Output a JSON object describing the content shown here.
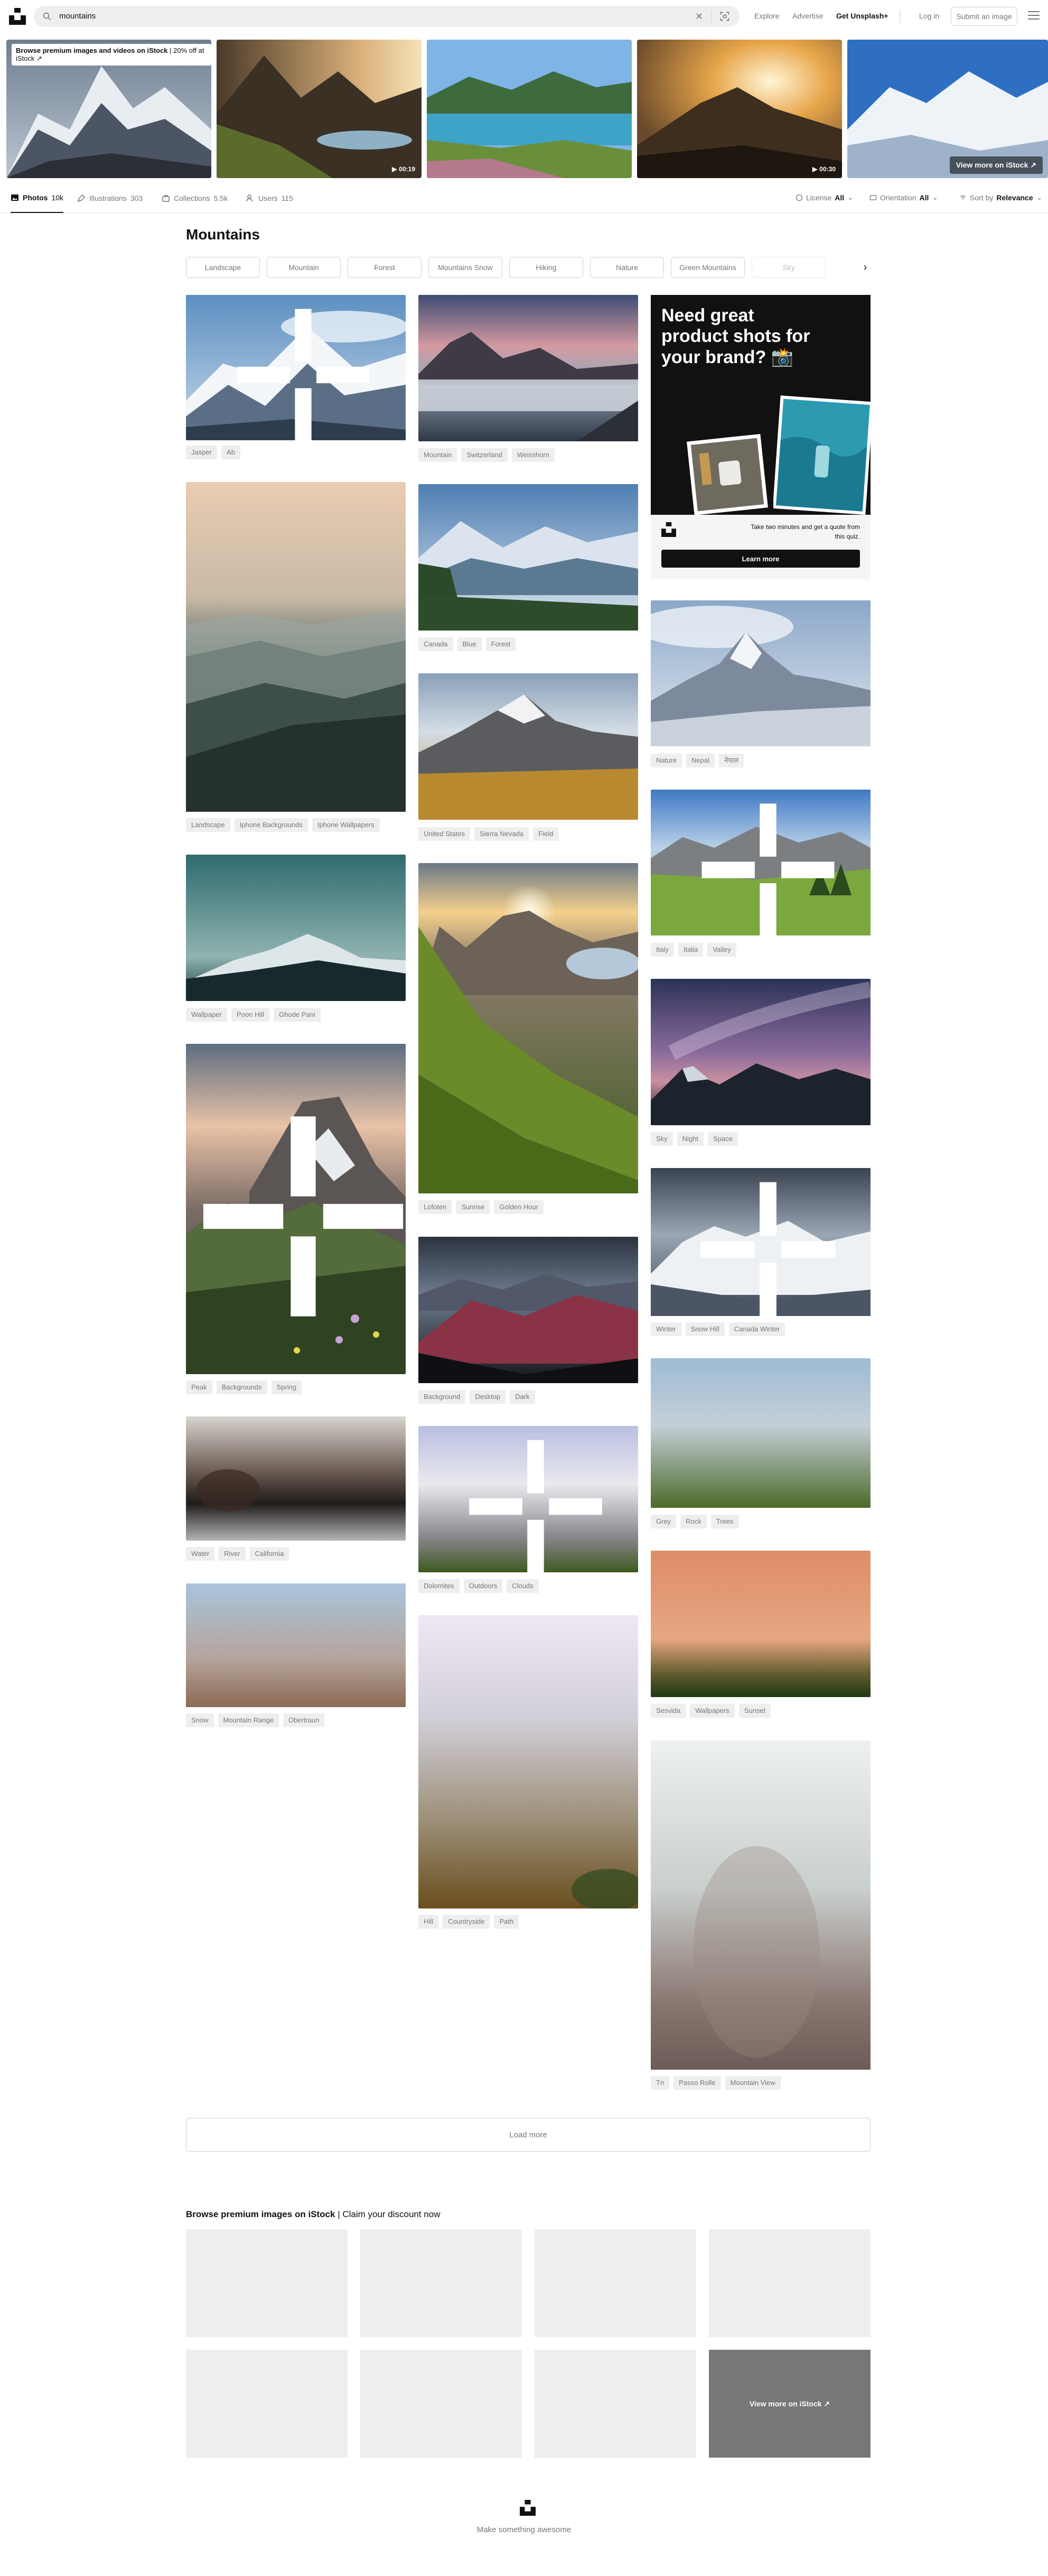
{
  "header": {
    "search_value": "mountains",
    "nav": {
      "explore": "Explore",
      "advertise": "Advertise",
      "get_plus": "Get Unsplash+"
    },
    "login": "Log in",
    "submit": "Submit an image"
  },
  "istock_strip": {
    "banner_bold": "Browse premium images and videos on iStock",
    "banner_rest": " | 20% off at iStock ↗",
    "durations": [
      "00:19",
      "00:30"
    ],
    "view_more": "View more on iStock ↗"
  },
  "tabs": [
    {
      "label": "Photos",
      "count": "10k"
    },
    {
      "label": "Illustrations",
      "count": "303"
    },
    {
      "label": "Collections",
      "count": "5.5k"
    },
    {
      "label": "Users",
      "count": "115"
    }
  ],
  "filters": {
    "license": {
      "label": "License",
      "value": "All"
    },
    "orientation": {
      "label": "Orientation",
      "value": "All"
    },
    "sort": {
      "label": "Sort by",
      "value": "Relevance"
    }
  },
  "page_title": "Mountains",
  "chips": [
    "Landscape",
    "Mountain",
    "Forest",
    "Mountains Snow",
    "Hiking",
    "Nature",
    "Green Mountains",
    "Sky"
  ],
  "photos": {
    "col1": [
      {
        "tags": [
          "Jasper",
          "Ab"
        ]
      },
      {
        "tags": [
          "Landscape",
          "Iphone Backgrounds",
          "Iphone Wallpapers"
        ]
      },
      {
        "tags": [
          "Wallpaper",
          "Poon Hill",
          "Ghode Pani"
        ]
      },
      {
        "tags": [
          "Peak",
          "Backgrounds",
          "Spring"
        ]
      },
      {
        "tags": [
          "Water",
          "River",
          "California"
        ]
      },
      {
        "tags": [
          "Snow",
          "Mountain Range",
          "Obertraun"
        ]
      }
    ],
    "col2": [
      {
        "tags": [
          "Mountain",
          "Switzerland",
          "Weisshorn"
        ]
      },
      {
        "tags": [
          "Canada",
          "Blue",
          "Forest"
        ]
      },
      {
        "tags": [
          "United States",
          "Sierra Nevada",
          "Field"
        ]
      },
      {
        "tags": [
          "Lofoten",
          "Sunrise",
          "Golden Hour"
        ]
      },
      {
        "tags": [
          "Background",
          "Desktop",
          "Dark"
        ]
      },
      {
        "tags": [
          "Dolomites",
          "Outdoors",
          "Clouds"
        ]
      },
      {
        "tags": [
          "Hill",
          "Countryside",
          "Path"
        ]
      }
    ],
    "col3": [
      {
        "tags": [
          "Nature",
          "Nepal",
          "नेपाल"
        ]
      },
      {
        "tags": [
          "Italy",
          "Italia",
          "Valley"
        ]
      },
      {
        "tags": [
          "Sky",
          "Night",
          "Space"
        ]
      },
      {
        "tags": [
          "Winter",
          "Snow Hill",
          "Canada Winter"
        ]
      },
      {
        "tags": [
          "Grey",
          "Rock",
          "Trees"
        ]
      },
      {
        "tags": [
          "Sesvida",
          "Wallpapers",
          "Sunset"
        ]
      },
      {
        "tags": [
          "Tn",
          "Passo Rolle",
          "Mountain View"
        ]
      }
    ]
  },
  "ad": {
    "title": "Need great product shots for your brand? 📸",
    "text": "Take two minutes and get a quote from this quiz.",
    "button": "Learn more"
  },
  "load_more": "Load more",
  "premium": {
    "title_bold": "Browse premium images on iStock",
    "title_rest": " | Claim your discount now",
    "view_more": "View more on iStock ↗"
  },
  "footer": {
    "tagline": "Make something awesome"
  }
}
